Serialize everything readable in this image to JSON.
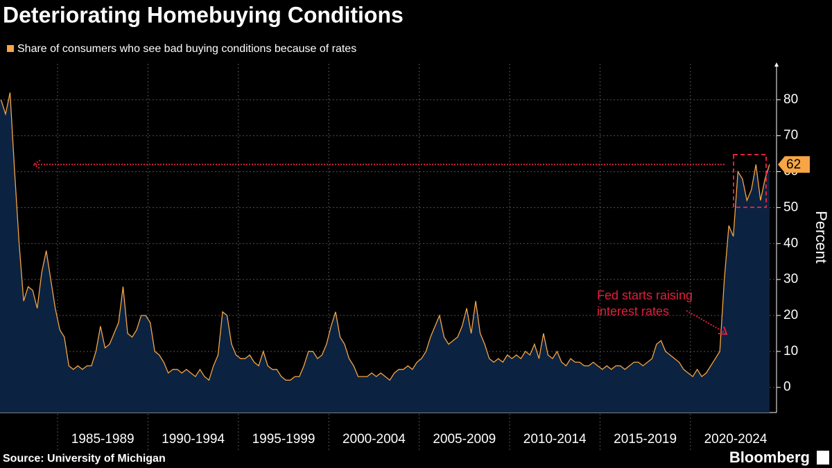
{
  "chart_data": {
    "type": "area",
    "title": "Deteriorating Homebuying Conditions",
    "legend_label": "Share of consumers who see bad buying conditions because of rates",
    "y_axis_label": "Percent",
    "source": "Source: University of Michigan",
    "brand": "Bloomberg",
    "annotation": "Fed starts raising interest rates",
    "latest_value": 62,
    "color": "#f7a545",
    "fill": "#0b2340",
    "ylim": [
      -7,
      90
    ],
    "yticks": [
      0,
      10,
      20,
      30,
      40,
      50,
      60,
      70,
      80
    ],
    "grid": true,
    "periods": [
      {
        "label": null,
        "values": [
          80,
          76,
          82,
          60,
          40,
          24,
          28,
          27,
          22,
          32,
          38,
          30,
          22
        ]
      },
      {
        "label": "1985-1989",
        "values": [
          16,
          14,
          6,
          5,
          6,
          5,
          6,
          6,
          10,
          17,
          11,
          12,
          15,
          18,
          28,
          15,
          14,
          16,
          20,
          20
        ]
      },
      {
        "label": "1990-1994",
        "values": [
          18,
          10,
          9,
          7,
          4,
          5,
          5,
          4,
          5,
          4,
          3,
          5,
          3,
          2,
          6,
          9,
          21,
          20,
          12,
          9
        ]
      },
      {
        "label": "1995-1999",
        "values": [
          8,
          8,
          9,
          7,
          6,
          10,
          6,
          5,
          5,
          3,
          2,
          2,
          3,
          3,
          6,
          10,
          10,
          8,
          9,
          12
        ]
      },
      {
        "label": "2000-2004",
        "values": [
          17,
          21,
          14,
          12,
          8,
          6,
          3,
          3,
          3,
          4,
          3,
          4,
          3,
          2,
          4,
          5,
          5,
          6,
          5,
          7
        ]
      },
      {
        "label": "2005-2009",
        "values": [
          8,
          10,
          14,
          17,
          20,
          14,
          12,
          13,
          14,
          17,
          22,
          15,
          24,
          15,
          12,
          8,
          7,
          8,
          7,
          9
        ]
      },
      {
        "label": "2010-2014",
        "values": [
          8,
          9,
          8,
          10,
          9,
          12,
          8,
          15,
          9,
          8,
          10,
          7,
          6,
          8,
          7,
          7,
          6,
          6,
          7,
          6
        ]
      },
      {
        "label": "2015-2019",
        "values": [
          5,
          6,
          5,
          6,
          6,
          5,
          6,
          7,
          7,
          6,
          7,
          8,
          12,
          13,
          10,
          9,
          8,
          7,
          5,
          4
        ]
      },
      {
        "label": "2020-2024",
        "values": [
          3,
          5,
          3,
          4,
          6,
          8,
          10,
          30,
          45,
          42,
          60,
          58,
          52,
          55,
          62,
          52,
          58,
          62
        ]
      }
    ]
  }
}
